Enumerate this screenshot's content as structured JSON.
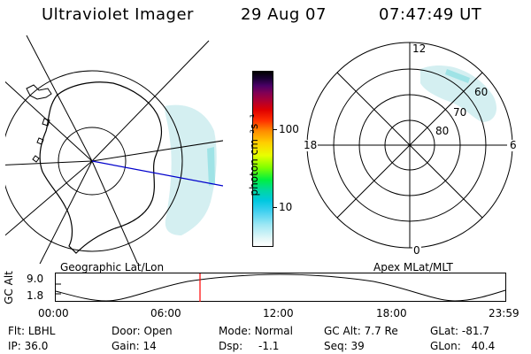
{
  "header": {
    "instrument": "Ultraviolet Imager",
    "date": "29 Aug 07",
    "time": "07:47:49 UT"
  },
  "colorbar": {
    "unit_label": "photon cm⁻²s⁻¹",
    "ticks": [
      "100",
      "10"
    ]
  },
  "geo_panel": {
    "caption": "Geographic Lat/Lon"
  },
  "mlt_panel": {
    "caption": "Apex MLat/MLT",
    "mlt_labels": {
      "top": "12",
      "left": "18",
      "right": "6",
      "bottom": "0"
    },
    "lat_labels": [
      "60",
      "70",
      "80"
    ]
  },
  "orbit": {
    "ylabel": "GC Alt",
    "y_ticks": [
      "9.0",
      "1.8"
    ],
    "x_ticks": [
      "00:00",
      "06:00",
      "12:00",
      "18:00",
      "23:59"
    ],
    "marker_time": "07:47:49"
  },
  "info": {
    "filter_label": "Flt:",
    "filter": "LBHL",
    "ip_label": "IP:",
    "ip": "36.0",
    "door_label": "Door:",
    "door": "Open",
    "gain_label": "Gain:",
    "gain": "14",
    "mode_label": "Mode:",
    "mode": "Normal",
    "dsp_label": "Dsp:",
    "dsp": "-1.1",
    "gcalt_label": "GC Alt:",
    "gcalt": "7.7 Re",
    "seq_label": "Seq:",
    "seq": "39",
    "glat_label": "GLat:",
    "glat": "-81.7",
    "glon_label": "GLon:",
    "glon": "40.4"
  },
  "colors": {
    "trace": "#0000cc",
    "marker": "#ff0000",
    "auroral_glow": "#c9ecee",
    "auroral_core": "#7fdde0"
  }
}
